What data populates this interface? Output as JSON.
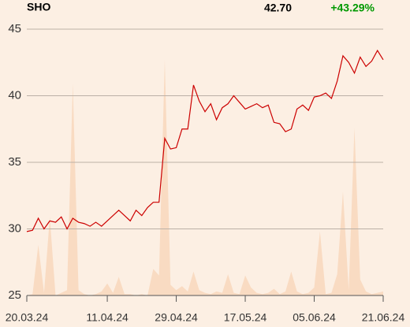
{
  "chart_data": {
    "type": "line",
    "title": "SHO",
    "last_price": "42.70",
    "change": "+43.29%",
    "change_color": "#009900",
    "categories": [
      "20.03.24",
      null,
      null,
      null,
      null,
      null,
      null,
      null,
      null,
      null,
      null,
      null,
      null,
      null,
      "11.04.24",
      null,
      null,
      null,
      null,
      null,
      null,
      null,
      null,
      null,
      null,
      null,
      "29.04.24",
      null,
      null,
      null,
      null,
      null,
      null,
      null,
      null,
      null,
      null,
      null,
      "17.05.24",
      null,
      null,
      null,
      null,
      null,
      null,
      null,
      null,
      null,
      null,
      null,
      "05.06.24",
      null,
      null,
      null,
      null,
      null,
      null,
      null,
      null,
      null,
      null,
      null,
      "21.06.24"
    ],
    "series": [
      {
        "type": "line",
        "color": "#cc0000",
        "values": [
          29.8,
          29.9,
          30.8,
          30.0,
          30.6,
          30.5,
          30.9,
          30.0,
          30.8,
          30.5,
          30.4,
          30.2,
          30.5,
          30.2,
          30.6,
          31.0,
          31.4,
          31.0,
          30.6,
          31.4,
          31.0,
          31.6,
          32.0,
          32.0,
          36.8,
          36.0,
          36.1,
          37.5,
          37.5,
          40.8,
          39.6,
          38.8,
          39.4,
          38.2,
          39.1,
          39.4,
          40.0,
          39.5,
          39.0,
          39.2,
          39.4,
          39.1,
          39.3,
          38.0,
          37.9,
          37.3,
          37.5,
          39.0,
          39.3,
          38.9,
          39.9,
          40.0,
          40.2,
          39.8,
          41.1,
          43.0,
          42.5,
          41.7,
          42.9,
          42.2,
          42.6,
          43.4,
          42.7
        ]
      },
      {
        "type": "area",
        "color": "#f9dbc2",
        "values": [
          25.0,
          25.1,
          28.8,
          25.2,
          30.9,
          25.0,
          25.2,
          25.4,
          40.9,
          25.4,
          25.1,
          25.0,
          25.1,
          25.3,
          25.9,
          25.2,
          26.4,
          25.1,
          25.1,
          25.0,
          25.1,
          25.0,
          27.0,
          26.5,
          42.7,
          25.8,
          25.4,
          25.7,
          25.3,
          26.8,
          25.4,
          25.2,
          25.1,
          25.3,
          25.2,
          26.6,
          25.2,
          25.1,
          26.5,
          25.6,
          25.2,
          25.1,
          25.2,
          25.5,
          25.1,
          25.3,
          26.8,
          25.3,
          25.1,
          25.2,
          25.6,
          29.8,
          25.1,
          25.2,
          26.6,
          32.8,
          25.4,
          37.6,
          26.2,
          25.3,
          25.1,
          25.2,
          25.3
        ]
      }
    ],
    "ylim": [
      25,
      45
    ],
    "yticks": [
      25,
      30,
      35,
      40,
      45
    ],
    "grid": true
  }
}
